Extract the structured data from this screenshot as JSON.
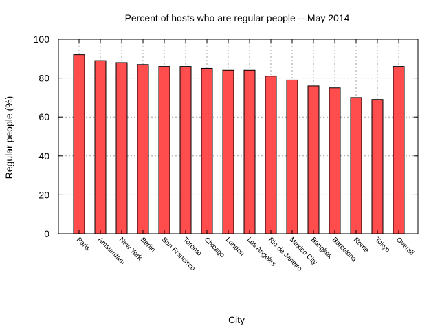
{
  "chart_data": {
    "type": "bar",
    "title": "Percent of hosts who are regular people -- May 2014",
    "xlabel": "City",
    "ylabel": "Regular people (%)",
    "ylim": [
      0,
      100
    ],
    "yticks": [
      0,
      20,
      40,
      60,
      80,
      100
    ],
    "grid": true,
    "bar_color": "#ff4d4d",
    "categories": [
      "Paris",
      "Amsterdam",
      "New York",
      "Berlin",
      "San Francisco",
      "Toronto",
      "Chicago",
      "London",
      "Los Angeles",
      "Rio de Janeiro",
      "Mexico City",
      "Bangkok",
      "Barcelona",
      "Rome",
      "Tokyo",
      "Overall"
    ],
    "values": [
      92,
      89,
      88,
      87,
      86,
      86,
      85,
      84,
      84,
      81,
      79,
      76,
      75,
      70,
      69,
      86
    ]
  }
}
